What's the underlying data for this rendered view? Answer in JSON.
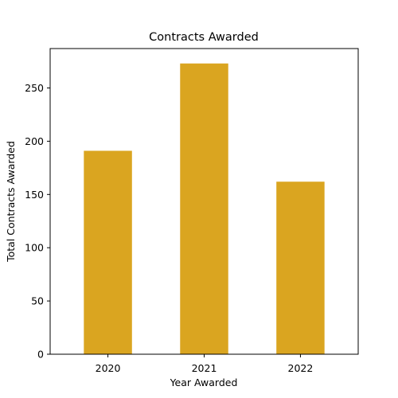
{
  "chart_data": {
    "type": "bar",
    "title": "Contracts Awarded",
    "xlabel": "Year Awarded",
    "ylabel": "Total Contracts Awarded",
    "categories": [
      "2020",
      "2021",
      "2022"
    ],
    "values": [
      191,
      273,
      162
    ],
    "ylim": [
      0,
      287
    ],
    "yticks": [
      0,
      50,
      100,
      150,
      200,
      250
    ],
    "bar_color": "#DAA520",
    "grid": false,
    "legend": "none"
  }
}
